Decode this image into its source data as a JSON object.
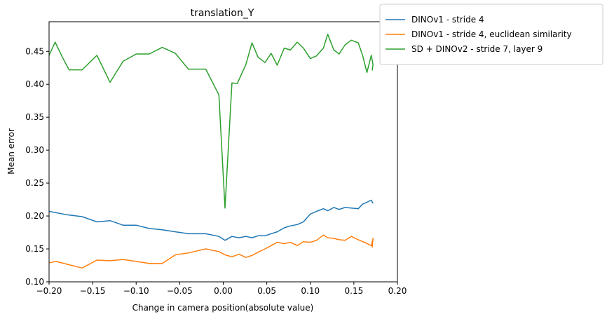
{
  "chart_data": {
    "type": "line",
    "title": "translation_Y",
    "xlabel": "Change in camera position(absolute value)",
    "ylabel": "Mean error",
    "xlim": [
      -0.2,
      0.2
    ],
    "ylim": [
      0.1,
      0.495
    ],
    "xticks": [
      -0.2,
      -0.15,
      -0.1,
      -0.05,
      0.0,
      0.05,
      0.1,
      0.15,
      0.2
    ],
    "xtick_labels": [
      "−0.20",
      "−0.15",
      "−0.10",
      "−0.05",
      "0.00",
      "0.05",
      "0.10",
      "0.15",
      "0.20"
    ],
    "yticks": [
      0.1,
      0.15,
      0.2,
      0.25,
      0.3,
      0.35,
      0.4,
      0.45
    ],
    "ytick_labels": [
      "0.10",
      "0.15",
      "0.20",
      "0.25",
      "0.30",
      "0.35",
      "0.40",
      "0.45"
    ],
    "grid": false,
    "legend_position": "outside-top-right",
    "series": [
      {
        "name": "DINOv1 - stride 4",
        "color": "#1f77b4",
        "x": [
          -0.2,
          -0.18,
          -0.162,
          -0.145,
          -0.13,
          -0.115,
          -0.1,
          -0.085,
          -0.07,
          -0.055,
          -0.04,
          -0.02,
          -0.005,
          0.002,
          0.01,
          0.018,
          0.026,
          0.033,
          0.04,
          0.048,
          0.055,
          0.062,
          0.07,
          0.077,
          0.085,
          0.092,
          0.1,
          0.107,
          0.115,
          0.12,
          0.127,
          0.133,
          0.14,
          0.147,
          0.155,
          0.16,
          0.165,
          0.17,
          0.172
        ],
        "y": [
          0.207,
          0.202,
          0.199,
          0.191,
          0.193,
          0.186,
          0.186,
          0.181,
          0.179,
          0.176,
          0.173,
          0.173,
          0.169,
          0.163,
          0.169,
          0.167,
          0.169,
          0.167,
          0.17,
          0.17,
          0.173,
          0.176,
          0.182,
          0.185,
          0.187,
          0.191,
          0.203,
          0.207,
          0.211,
          0.208,
          0.213,
          0.21,
          0.213,
          0.212,
          0.211,
          0.218,
          0.221,
          0.224,
          0.219
        ]
      },
      {
        "name": "DINOv1 - stride 4, euclidean similarity",
        "color": "#ff7f0e",
        "x": [
          -0.2,
          -0.192,
          -0.177,
          -0.162,
          -0.145,
          -0.13,
          -0.115,
          -0.1,
          -0.085,
          -0.07,
          -0.055,
          -0.04,
          -0.02,
          -0.005,
          0.002,
          0.01,
          0.018,
          0.026,
          0.033,
          0.04,
          0.048,
          0.055,
          0.062,
          0.07,
          0.077,
          0.085,
          0.092,
          0.1,
          0.107,
          0.115,
          0.12,
          0.127,
          0.133,
          0.14,
          0.147,
          0.155,
          0.162,
          0.17,
          0.172,
          0.171
        ],
        "y": [
          0.129,
          0.131,
          0.126,
          0.121,
          0.133,
          0.132,
          0.134,
          0.131,
          0.128,
          0.128,
          0.141,
          0.144,
          0.15,
          0.146,
          0.141,
          0.138,
          0.142,
          0.137,
          0.14,
          0.145,
          0.15,
          0.155,
          0.16,
          0.158,
          0.16,
          0.155,
          0.161,
          0.16,
          0.163,
          0.171,
          0.167,
          0.166,
          0.164,
          0.163,
          0.169,
          0.164,
          0.16,
          0.155,
          0.166,
          0.152
        ]
      },
      {
        "name": "SD + DINOv2 - stride 7, layer 9",
        "color": "#2ca02c",
        "x": [
          -0.2,
          -0.193,
          -0.185,
          -0.177,
          -0.162,
          -0.145,
          -0.13,
          -0.115,
          -0.1,
          -0.085,
          -0.07,
          -0.055,
          -0.04,
          -0.02,
          -0.005,
          0.002,
          0.01,
          0.016,
          0.026,
          0.033,
          0.04,
          0.048,
          0.055,
          0.062,
          0.07,
          0.077,
          0.085,
          0.092,
          0.1,
          0.107,
          0.115,
          0.12,
          0.127,
          0.133,
          0.14,
          0.147,
          0.155,
          0.16,
          0.165,
          0.17,
          0.172,
          0.171
        ],
        "y": [
          0.444,
          0.464,
          0.442,
          0.422,
          0.422,
          0.444,
          0.403,
          0.435,
          0.446,
          0.446,
          0.456,
          0.447,
          0.423,
          0.423,
          0.384,
          0.212,
          0.402,
          0.401,
          0.43,
          0.463,
          0.441,
          0.433,
          0.447,
          0.429,
          0.455,
          0.452,
          0.464,
          0.455,
          0.439,
          0.443,
          0.455,
          0.476,
          0.452,
          0.446,
          0.46,
          0.467,
          0.463,
          0.444,
          0.418,
          0.444,
          0.43,
          0.421
        ]
      }
    ]
  }
}
